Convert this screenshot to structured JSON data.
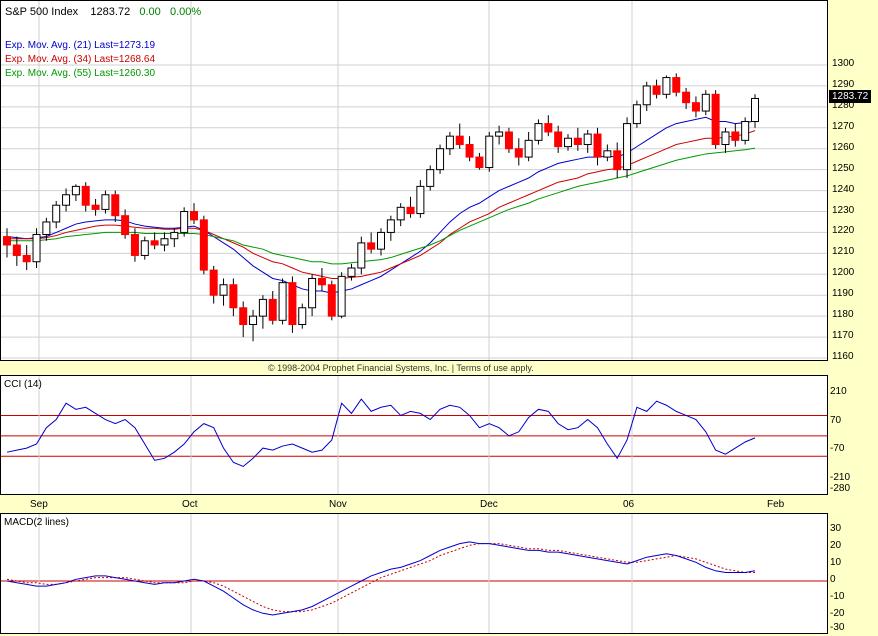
{
  "header": {
    "index_name": "S&P 500 Index",
    "last": "1283.72",
    "change": "0.00",
    "pct": "0.00%"
  },
  "legend": [
    {
      "label": "Exp. Mov. Avg. (21) Last=1273.19",
      "color": "#0000CC"
    },
    {
      "label": "Exp. Mov. Avg. (34) Last=1268.64",
      "color": "#CC0000"
    },
    {
      "label": "Exp. Mov. Avg. (55) Last=1260.30",
      "color": "#009900"
    }
  ],
  "last_price_box": "1283.72",
  "copyright": "© 1998-2004 Prophet Financial Systems, Inc. | Terms of use apply.",
  "cci": {
    "title": "CCI (14)",
    "ticks": [
      "210",
      "70",
      "-70",
      "-210",
      "-280"
    ],
    "line_values": [
      100,
      0,
      -100
    ]
  },
  "macd": {
    "title": "MACD(2 lines)",
    "ticks": [
      "30",
      "20",
      "10",
      "0",
      "-10",
      "-20",
      "-30"
    ]
  },
  "xaxis": {
    "labels": [
      "Sep",
      "Oct",
      "Nov",
      "Dec",
      "06",
      "Feb"
    ]
  },
  "colors": {
    "up": "#FFFFFF",
    "down": "#FF0000",
    "ema21": "#0000CC",
    "ema34": "#CC0000",
    "ema55": "#009900",
    "grid": "#D0D0D0",
    "macd": "#0000CC",
    "signal": "#CC0000",
    "green": "#008000"
  },
  "chart_data": [
    {
      "type": "candlestick",
      "title": "S&P 500 Index",
      "ylim": [
        1160,
        1310
      ],
      "yticks": [
        1160,
        1170,
        1180,
        1190,
        1200,
        1210,
        1220,
        1230,
        1240,
        1250,
        1260,
        1270,
        1280,
        1290,
        1300
      ],
      "x_labels": [
        "Sep",
        "Oct",
        "Nov",
        "Dec",
        "06",
        "Feb"
      ],
      "ohlc": [
        [
          1218,
          1222,
          1208,
          1214
        ],
        [
          1214,
          1218,
          1204,
          1209
        ],
        [
          1209,
          1214,
          1202,
          1206
        ],
        [
          1206,
          1222,
          1203,
          1219
        ],
        [
          1219,
          1227,
          1216,
          1225
        ],
        [
          1225,
          1235,
          1222,
          1233
        ],
        [
          1233,
          1241,
          1230,
          1238
        ],
        [
          1238,
          1243,
          1235,
          1242
        ],
        [
          1242,
          1244,
          1230,
          1233
        ],
        [
          1233,
          1236,
          1228,
          1231
        ],
        [
          1231,
          1240,
          1229,
          1238
        ],
        [
          1238,
          1240,
          1225,
          1228
        ],
        [
          1228,
          1231,
          1217,
          1219
        ],
        [
          1219,
          1222,
          1206,
          1209
        ],
        [
          1209,
          1218,
          1207,
          1216
        ],
        [
          1216,
          1220,
          1212,
          1214
        ],
        [
          1214,
          1220,
          1211,
          1217
        ],
        [
          1217,
          1222,
          1213,
          1220
        ],
        [
          1220,
          1232,
          1218,
          1230
        ],
        [
          1230,
          1234,
          1224,
          1226
        ],
        [
          1226,
          1228,
          1200,
          1202
        ],
        [
          1202,
          1204,
          1186,
          1190
        ],
        [
          1190,
          1198,
          1185,
          1195
        ],
        [
          1195,
          1198,
          1180,
          1184
        ],
        [
          1184,
          1187,
          1170,
          1176
        ],
        [
          1176,
          1183,
          1168,
          1180
        ],
        [
          1180,
          1190,
          1174,
          1188
        ],
        [
          1188,
          1192,
          1176,
          1178
        ],
        [
          1178,
          1198,
          1176,
          1196
        ],
        [
          1196,
          1199,
          1172,
          1176
        ],
        [
          1176,
          1186,
          1174,
          1184
        ],
        [
          1184,
          1200,
          1180,
          1198
        ],
        [
          1198,
          1203,
          1192,
          1195
        ],
        [
          1195,
          1197,
          1178,
          1180
        ],
        [
          1180,
          1201,
          1179,
          1199
        ],
        [
          1199,
          1205,
          1197,
          1203
        ],
        [
          1203,
          1218,
          1200,
          1215
        ],
        [
          1215,
          1220,
          1210,
          1212
        ],
        [
          1212,
          1222,
          1209,
          1220
        ],
        [
          1220,
          1228,
          1216,
          1226
        ],
        [
          1226,
          1234,
          1223,
          1232
        ],
        [
          1232,
          1237,
          1227,
          1229
        ],
        [
          1229,
          1245,
          1227,
          1242
        ],
        [
          1242,
          1252,
          1240,
          1250
        ],
        [
          1250,
          1262,
          1248,
          1260
        ],
        [
          1260,
          1268,
          1257,
          1266
        ],
        [
          1266,
          1272,
          1260,
          1262
        ],
        [
          1262,
          1266,
          1254,
          1256
        ],
        [
          1256,
          1258,
          1250,
          1251
        ],
        [
          1251,
          1268,
          1249,
          1266
        ],
        [
          1266,
          1271,
          1262,
          1268
        ],
        [
          1268,
          1270,
          1258,
          1260
        ],
        [
          1260,
          1265,
          1252,
          1256
        ],
        [
          1256,
          1268,
          1254,
          1264
        ],
        [
          1264,
          1274,
          1262,
          1272
        ],
        [
          1272,
          1276,
          1266,
          1268
        ],
        [
          1268,
          1271,
          1258,
          1261
        ],
        [
          1261,
          1267,
          1259,
          1265
        ],
        [
          1265,
          1270,
          1259,
          1262
        ],
        [
          1262,
          1269,
          1258,
          1267
        ],
        [
          1267,
          1270,
          1252,
          1256
        ],
        [
          1256,
          1262,
          1254,
          1259
        ],
        [
          1259,
          1263,
          1246,
          1250
        ],
        [
          1250,
          1275,
          1246,
          1272
        ],
        [
          1272,
          1283,
          1270,
          1281
        ],
        [
          1281,
          1292,
          1278,
          1290
        ],
        [
          1290,
          1293,
          1284,
          1286
        ],
        [
          1286,
          1295,
          1284,
          1294
        ],
        [
          1294,
          1296,
          1285,
          1287
        ],
        [
          1287,
          1289,
          1279,
          1282
        ],
        [
          1282,
          1285,
          1275,
          1278
        ],
        [
          1278,
          1288,
          1276,
          1286
        ],
        [
          1286,
          1288,
          1260,
          1262
        ],
        [
          1262,
          1270,
          1258,
          1268
        ],
        [
          1268,
          1272,
          1261,
          1264
        ],
        [
          1264,
          1275,
          1262,
          1273
        ],
        [
          1273,
          1286,
          1270,
          1284
        ]
      ],
      "series": [
        {
          "name": "Exp. Mov. Avg. (21)",
          "last": 1273.19,
          "values": [
            1218,
            1217.5,
            1217,
            1217.5,
            1218,
            1220,
            1222,
            1224,
            1225,
            1225.5,
            1226,
            1226,
            1225.5,
            1224,
            1223,
            1222.5,
            1222,
            1222,
            1222.5,
            1223,
            1221,
            1218,
            1215,
            1212,
            1208,
            1204,
            1201,
            1198,
            1197,
            1195,
            1193,
            1192,
            1192,
            1191,
            1192,
            1193,
            1195,
            1197,
            1199,
            1202,
            1205,
            1208,
            1211,
            1215,
            1220,
            1225,
            1229,
            1232,
            1234,
            1237,
            1240,
            1242,
            1244,
            1246,
            1249,
            1251,
            1253,
            1254,
            1255,
            1256,
            1256,
            1256.5,
            1256,
            1258,
            1261,
            1264,
            1267,
            1270,
            1272,
            1273,
            1274,
            1275,
            1273,
            1273,
            1272,
            1272.5,
            1273.19
          ]
        },
        {
          "name": "Exp. Mov. Avg. (34)",
          "last": 1268.64,
          "values": [
            1217,
            1217,
            1217,
            1217,
            1217.5,
            1218.5,
            1220,
            1221,
            1222,
            1223,
            1223.5,
            1223.5,
            1223,
            1222.5,
            1222,
            1222,
            1221.5,
            1221.5,
            1222,
            1222,
            1221,
            1219,
            1217,
            1215,
            1213,
            1210,
            1208,
            1206,
            1205,
            1203,
            1201,
            1200,
            1199,
            1198,
            1198,
            1198.5,
            1199,
            1200,
            1201,
            1203,
            1205,
            1207,
            1209,
            1212,
            1215,
            1219,
            1222,
            1225,
            1227,
            1229,
            1232,
            1234,
            1236,
            1238,
            1240,
            1242,
            1244,
            1245,
            1246,
            1248,
            1249,
            1250,
            1250.5,
            1252,
            1254,
            1256,
            1258,
            1260,
            1262,
            1263,
            1264,
            1265,
            1265,
            1265.5,
            1266,
            1267,
            1268.64
          ]
        },
        {
          "name": "Exp. Mov. Avg. (55)",
          "last": 1260.3,
          "values": [
            1216,
            1216,
            1216,
            1216,
            1216.5,
            1217,
            1218,
            1218.5,
            1219,
            1219.5,
            1220,
            1220,
            1220,
            1220,
            1219.5,
            1219.5,
            1219.5,
            1219.5,
            1219.5,
            1219.5,
            1219,
            1218,
            1217,
            1216,
            1214,
            1213,
            1212,
            1210,
            1209,
            1208,
            1207,
            1206,
            1206,
            1205,
            1205,
            1205.5,
            1206,
            1206.5,
            1207,
            1208,
            1209.5,
            1211,
            1212.5,
            1214,
            1216,
            1218.5,
            1221,
            1223,
            1225,
            1227,
            1229,
            1231,
            1232.5,
            1234,
            1236,
            1237.5,
            1239,
            1240.5,
            1242,
            1243,
            1244,
            1245,
            1246,
            1247,
            1248.5,
            1250,
            1251.5,
            1253,
            1254.5,
            1255.5,
            1256.5,
            1257.5,
            1258,
            1258.5,
            1259,
            1259.5,
            1260.3
          ]
        }
      ]
    },
    {
      "type": "line",
      "title": "CCI (14)",
      "ylim": [
        -280,
        210
      ],
      "series": [
        {
          "name": "CCI (14)",
          "values": [
            -80,
            -70,
            -60,
            -40,
            40,
            80,
            160,
            130,
            140,
            110,
            80,
            60,
            80,
            40,
            -40,
            -120,
            -110,
            -80,
            -40,
            20,
            60,
            40,
            -60,
            -130,
            -150,
            -110,
            -60,
            -70,
            -50,
            -40,
            -60,
            -80,
            -70,
            -20,
            160,
            110,
            180,
            120,
            140,
            150,
            100,
            120,
            110,
            80,
            130,
            150,
            140,
            100,
            40,
            60,
            40,
            0,
            20,
            90,
            130,
            120,
            60,
            30,
            40,
            80,
            40,
            -40,
            -110,
            -20,
            140,
            120,
            170,
            150,
            120,
            100,
            80,
            20,
            -70,
            -90,
            -60,
            -30,
            -10
          ]
        }
      ]
    },
    {
      "type": "line",
      "title": "MACD(2 lines)",
      "ylim": [
        -30,
        30
      ],
      "series": [
        {
          "name": "MACD",
          "values": [
            0,
            -1,
            -2,
            -3,
            -3,
            -2,
            -1,
            1,
            2,
            3,
            3,
            2,
            1,
            0,
            -1,
            -2,
            -1,
            -1,
            0,
            1,
            0,
            -3,
            -6,
            -10,
            -14,
            -17,
            -19,
            -20,
            -19,
            -18,
            -17,
            -15,
            -12,
            -9,
            -6,
            -3,
            0,
            3,
            5,
            7,
            8,
            10,
            12,
            15,
            18,
            20,
            22,
            23,
            22,
            22,
            21,
            20,
            19,
            18,
            18,
            17,
            17,
            16,
            15,
            14,
            13,
            12,
            11,
            10,
            12,
            14,
            15,
            16,
            15,
            13,
            11,
            8,
            6,
            5,
            5,
            5,
            6
          ]
        },
        {
          "name": "Signal",
          "values": [
            1,
            0,
            -1,
            -1,
            -2,
            -2,
            -1,
            0,
            1,
            2,
            2,
            2,
            2,
            1,
            0,
            -1,
            -1,
            -1,
            -1,
            0,
            0,
            -1,
            -3,
            -6,
            -9,
            -12,
            -15,
            -17,
            -18,
            -18,
            -18,
            -17,
            -15,
            -13,
            -10,
            -7,
            -4,
            -1,
            2,
            4,
            6,
            8,
            10,
            12,
            15,
            17,
            19,
            21,
            22,
            22,
            22,
            21,
            20,
            19,
            19,
            18,
            18,
            17,
            16,
            15,
            14,
            13,
            12,
            11,
            11,
            12,
            13,
            14,
            15,
            14,
            13,
            11,
            9,
            7,
            6,
            5,
            5
          ]
        }
      ]
    }
  ]
}
